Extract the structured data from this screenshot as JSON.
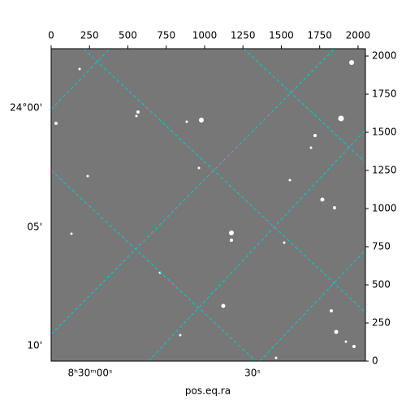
{
  "chart_data": {
    "type": "image",
    "xlabel": "pos.eq.ra",
    "xlim": [
      0,
      2048
    ],
    "ylim": [
      0,
      2048
    ],
    "xticks": [
      0,
      250,
      500,
      750,
      1000,
      1250,
      1500,
      1750,
      2000
    ],
    "yticks": [
      0,
      250,
      500,
      750,
      1000,
      1250,
      1500,
      1750,
      2000
    ],
    "ra_labels": [
      "8ʰ30ᵐ00ˢ",
      "30ˢ"
    ],
    "dec_labels": [
      "24°00'",
      "05'",
      "10'"
    ],
    "grid_color": "#00d0d0"
  }
}
